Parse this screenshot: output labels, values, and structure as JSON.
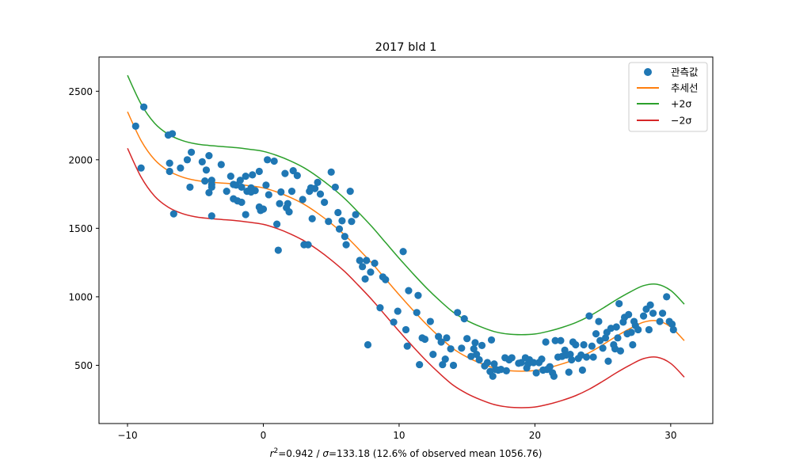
{
  "chart_data": {
    "type": "scatter",
    "title": "2017 bld 1",
    "xlabel": "$r^2$=0.942 / $\\sigma$=133.18 (12.6% of observed mean 1056.76)",
    "xlabel_parts": {
      "r2_label": "r",
      "r2_sup": "2",
      "r2_value": "=0.942 / ",
      "sigma_label": "σ",
      "rest": "=133.18 (12.6% of observed mean 1056.76)"
    },
    "ylabel": "",
    "xlim": [
      -12.1,
      33.1
    ],
    "ylim": [
      75,
      2750
    ],
    "xticks": [
      -10,
      0,
      10,
      20,
      30
    ],
    "xtick_labels": [
      "−10",
      "0",
      "10",
      "20",
      "30"
    ],
    "yticks": [
      500,
      1000,
      1500,
      2000,
      2500
    ],
    "ytick_labels": [
      "500",
      "1000",
      "1500",
      "2000",
      "2500"
    ],
    "grid": false,
    "legend_position": "top-right",
    "trend_curve": {
      "x": [
        -10,
        -9,
        -8,
        -7,
        -6,
        -5,
        -4,
        -3,
        -2,
        -1,
        0,
        1,
        2,
        3,
        4,
        5,
        6,
        7,
        8,
        9,
        10,
        11,
        12,
        13,
        14,
        15,
        16,
        17,
        18,
        19,
        20,
        21,
        22,
        23,
        24,
        25,
        26,
        27,
        28,
        29,
        30,
        31
      ],
      "y": [
        2350,
        2140,
        2000,
        1920,
        1875,
        1850,
        1838,
        1830,
        1822,
        1810,
        1795,
        1765,
        1725,
        1675,
        1610,
        1535,
        1450,
        1350,
        1245,
        1130,
        1015,
        905,
        800,
        705,
        620,
        560,
        515,
        480,
        462,
        457,
        462,
        482,
        510,
        545,
        592,
        650,
        712,
        768,
        815,
        825,
        780,
        680
      ]
    },
    "sigma": 133.18,
    "series": [
      {
        "name": "관측값",
        "color": "#1f77b4",
        "points": [
          [
            -9.4,
            2245
          ],
          [
            -9.0,
            1940
          ],
          [
            -8.8,
            2385
          ],
          [
            -7.0,
            2180
          ],
          [
            -6.7,
            2190
          ],
          [
            -6.9,
            1975
          ],
          [
            -6.9,
            1915
          ],
          [
            -6.6,
            1605
          ],
          [
            -6.1,
            1940
          ],
          [
            -5.6,
            2000
          ],
          [
            -5.3,
            2055
          ],
          [
            -5.4,
            1800
          ],
          [
            -4.5,
            1985
          ],
          [
            -4.2,
            1925
          ],
          [
            -4.0,
            2030
          ],
          [
            -3.8,
            1850
          ],
          [
            -3.8,
            1820
          ],
          [
            -4.0,
            1760
          ],
          [
            -3.8,
            1590
          ],
          [
            -4.3,
            1845
          ],
          [
            -3.8,
            1800
          ],
          [
            -3.1,
            1965
          ],
          [
            -2.7,
            1770
          ],
          [
            -2.4,
            1880
          ],
          [
            -2.2,
            1820
          ],
          [
            -2.0,
            1815
          ],
          [
            -2.2,
            1715
          ],
          [
            -1.9,
            1700
          ],
          [
            -1.7,
            1850
          ],
          [
            -1.6,
            1800
          ],
          [
            -1.3,
            1880
          ],
          [
            -1.2,
            1770
          ],
          [
            -0.9,
            1795
          ],
          [
            -0.8,
            1890
          ],
          [
            -0.6,
            1775
          ],
          [
            -0.3,
            1915
          ],
          [
            -1.3,
            1600
          ],
          [
            -1.6,
            1690
          ],
          [
            -0.9,
            1765
          ],
          [
            -0.3,
            1655
          ],
          [
            -0.2,
            1630
          ],
          [
            0.0,
            1640
          ],
          [
            0.2,
            1815
          ],
          [
            0.3,
            2000
          ],
          [
            0.4,
            1745
          ],
          [
            0.8,
            1990
          ],
          [
            1.0,
            1530
          ],
          [
            1.1,
            1340
          ],
          [
            1.2,
            1680
          ],
          [
            1.3,
            1765
          ],
          [
            1.6,
            1900
          ],
          [
            1.7,
            1650
          ],
          [
            1.8,
            1680
          ],
          [
            1.9,
            1620
          ],
          [
            2.1,
            1770
          ],
          [
            2.2,
            1920
          ],
          [
            2.5,
            1885
          ],
          [
            2.9,
            1710
          ],
          [
            3.0,
            1380
          ],
          [
            3.3,
            1380
          ],
          [
            3.4,
            1770
          ],
          [
            3.5,
            1795
          ],
          [
            3.6,
            1570
          ],
          [
            3.8,
            1790
          ],
          [
            4.0,
            1835
          ],
          [
            4.2,
            1750
          ],
          [
            4.5,
            1690
          ],
          [
            4.8,
            1550
          ],
          [
            5.0,
            1910
          ],
          [
            5.3,
            1800
          ],
          [
            5.5,
            1615
          ],
          [
            5.6,
            1495
          ],
          [
            5.8,
            1555
          ],
          [
            6.0,
            1440
          ],
          [
            6.1,
            1380
          ],
          [
            6.4,
            1770
          ],
          [
            6.5,
            1550
          ],
          [
            6.8,
            1600
          ],
          [
            7.1,
            1265
          ],
          [
            7.3,
            1220
          ],
          [
            7.5,
            1130
          ],
          [
            7.6,
            1265
          ],
          [
            7.7,
            650
          ],
          [
            7.9,
            1180
          ],
          [
            8.2,
            1245
          ],
          [
            8.6,
            920
          ],
          [
            8.8,
            1145
          ],
          [
            9.0,
            1125
          ],
          [
            9.6,
            815
          ],
          [
            9.9,
            895
          ],
          [
            10.3,
            1330
          ],
          [
            10.5,
            760
          ],
          [
            10.6,
            640
          ],
          [
            10.7,
            1045
          ],
          [
            11.3,
            885
          ],
          [
            11.4,
            1010
          ],
          [
            11.5,
            505
          ],
          [
            11.7,
            700
          ],
          [
            11.9,
            690
          ],
          [
            12.3,
            820
          ],
          [
            12.5,
            580
          ],
          [
            12.9,
            710
          ],
          [
            13.1,
            670
          ],
          [
            13.2,
            505
          ],
          [
            13.4,
            545
          ],
          [
            13.5,
            700
          ],
          [
            13.8,
            620
          ],
          [
            14.0,
            500
          ],
          [
            14.3,
            885
          ],
          [
            14.6,
            625
          ],
          [
            14.8,
            840
          ],
          [
            15.0,
            695
          ],
          [
            15.3,
            565
          ],
          [
            15.5,
            620
          ],
          [
            15.6,
            665
          ],
          [
            15.7,
            580
          ],
          [
            15.9,
            540
          ],
          [
            16.1,
            645
          ],
          [
            16.3,
            495
          ],
          [
            16.5,
            520
          ],
          [
            16.7,
            455
          ],
          [
            16.8,
            685
          ],
          [
            16.9,
            420
          ],
          [
            17.0,
            510
          ],
          [
            17.1,
            470
          ],
          [
            17.3,
            465
          ],
          [
            17.5,
            470
          ],
          [
            17.8,
            555
          ],
          [
            17.9,
            460
          ],
          [
            18.1,
            540
          ],
          [
            18.3,
            555
          ],
          [
            18.8,
            515
          ],
          [
            19.0,
            520
          ],
          [
            19.3,
            555
          ],
          [
            19.4,
            480
          ],
          [
            19.5,
            510
          ],
          [
            19.6,
            540
          ],
          [
            19.9,
            520
          ],
          [
            20.1,
            445
          ],
          [
            20.3,
            520
          ],
          [
            20.5,
            545
          ],
          [
            20.6,
            465
          ],
          [
            20.8,
            670
          ],
          [
            20.9,
            470
          ],
          [
            21.1,
            490
          ],
          [
            21.3,
            445
          ],
          [
            21.4,
            420
          ],
          [
            21.5,
            680
          ],
          [
            21.7,
            560
          ],
          [
            21.9,
            680
          ],
          [
            22.0,
            565
          ],
          [
            22.2,
            610
          ],
          [
            22.3,
            575
          ],
          [
            22.5,
            450
          ],
          [
            22.6,
            580
          ],
          [
            22.7,
            540
          ],
          [
            22.8,
            670
          ],
          [
            23.0,
            650
          ],
          [
            23.2,
            550
          ],
          [
            23.4,
            575
          ],
          [
            23.5,
            465
          ],
          [
            23.6,
            650
          ],
          [
            23.8,
            560
          ],
          [
            24.0,
            860
          ],
          [
            24.2,
            640
          ],
          [
            24.3,
            560
          ],
          [
            24.5,
            730
          ],
          [
            24.7,
            820
          ],
          [
            24.8,
            680
          ],
          [
            25.0,
            625
          ],
          [
            25.2,
            700
          ],
          [
            25.3,
            740
          ],
          [
            25.4,
            530
          ],
          [
            25.6,
            770
          ],
          [
            25.8,
            650
          ],
          [
            25.9,
            620
          ],
          [
            26.0,
            780
          ],
          [
            26.1,
            700
          ],
          [
            26.2,
            950
          ],
          [
            26.3,
            605
          ],
          [
            26.5,
            815
          ],
          [
            26.6,
            850
          ],
          [
            26.8,
            730
          ],
          [
            26.9,
            870
          ],
          [
            27.1,
            740
          ],
          [
            27.2,
            650
          ],
          [
            27.3,
            820
          ],
          [
            27.4,
            790
          ],
          [
            27.6,
            760
          ],
          [
            28.0,
            860
          ],
          [
            28.2,
            910
          ],
          [
            28.4,
            760
          ],
          [
            28.5,
            940
          ],
          [
            28.7,
            880
          ],
          [
            29.2,
            820
          ],
          [
            29.4,
            880
          ],
          [
            29.7,
            1000
          ],
          [
            29.9,
            820
          ],
          [
            30.1,
            800
          ],
          [
            30.2,
            760
          ]
        ]
      },
      {
        "name": "추세선",
        "color": "#ff7f0e"
      },
      {
        "name": "+2σ",
        "color": "#2ca02c"
      },
      {
        "name": "−2σ",
        "color": "#d62728"
      }
    ]
  }
}
